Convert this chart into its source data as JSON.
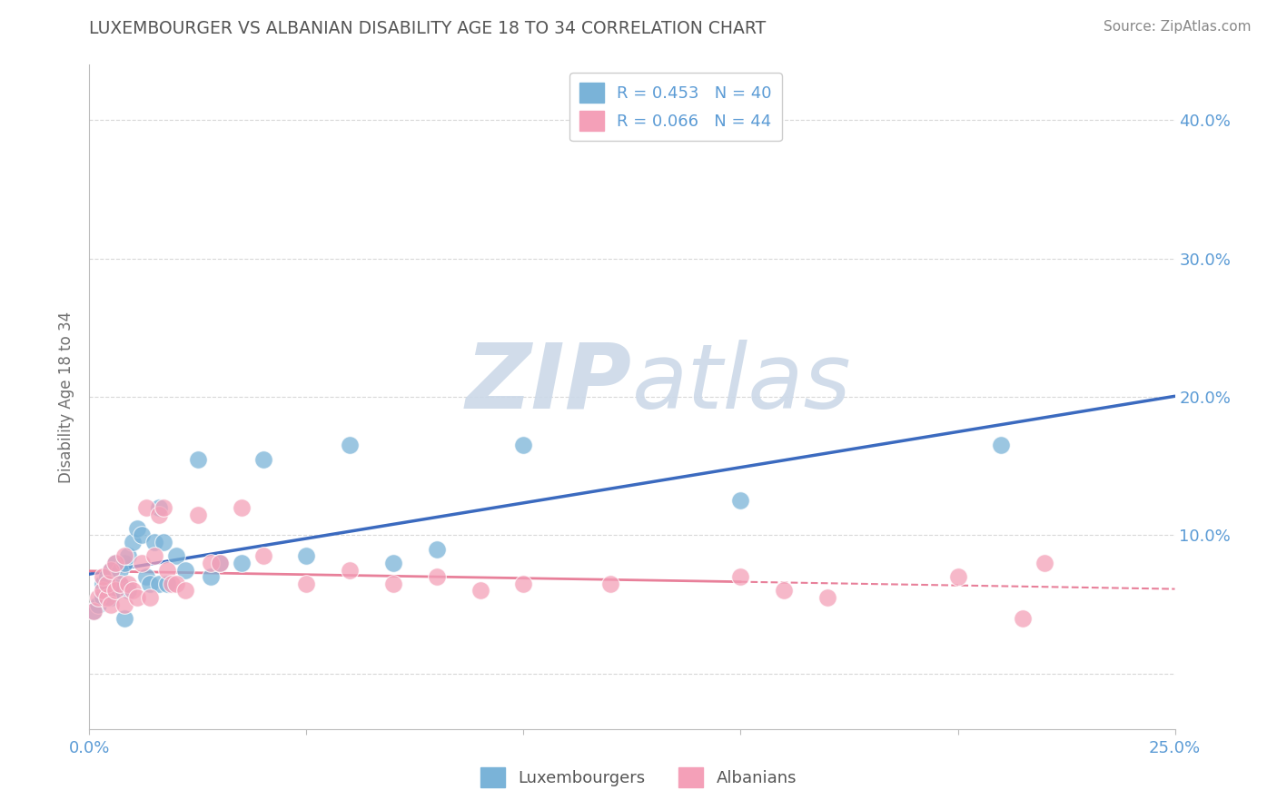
{
  "title": "LUXEMBOURGER VS ALBANIAN DISABILITY AGE 18 TO 34 CORRELATION CHART",
  "source": "Source: ZipAtlas.com",
  "ylabel": "Disability Age 18 to 34",
  "xlim": [
    0.0,
    0.25
  ],
  "ylim": [
    -0.04,
    0.44
  ],
  "ytick_vals": [
    0.0,
    0.1,
    0.2,
    0.3,
    0.4
  ],
  "ytick_labels": [
    "",
    "10.0%",
    "20.0%",
    "30.0%",
    "40.0%"
  ],
  "legend_lux": "R = 0.453   N = 40",
  "legend_alb": "R = 0.066   N = 44",
  "watermark": "ZIPatlas",
  "lux_color": "#7ab3d8",
  "alb_color": "#f4a0b8",
  "lux_line_color": "#3b6abf",
  "alb_line_color": "#e8809a",
  "background_color": "#ffffff",
  "grid_color": "#d8d8d8",
  "title_color": "#555555",
  "axis_label_color": "#5b9bd5",
  "watermark_color": "#ccd9e8",
  "lux_x": [
    0.001,
    0.002,
    0.003,
    0.003,
    0.004,
    0.004,
    0.005,
    0.005,
    0.006,
    0.006,
    0.007,
    0.007,
    0.008,
    0.008,
    0.009,
    0.009,
    0.01,
    0.011,
    0.012,
    0.013,
    0.014,
    0.015,
    0.016,
    0.016,
    0.017,
    0.018,
    0.02,
    0.022,
    0.025,
    0.028,
    0.03,
    0.035,
    0.04,
    0.05,
    0.06,
    0.07,
    0.08,
    0.1,
    0.15,
    0.21
  ],
  "lux_y": [
    0.045,
    0.05,
    0.055,
    0.065,
    0.06,
    0.07,
    0.055,
    0.075,
    0.06,
    0.08,
    0.065,
    0.075,
    0.04,
    0.08,
    0.06,
    0.085,
    0.095,
    0.105,
    0.1,
    0.07,
    0.065,
    0.095,
    0.12,
    0.065,
    0.095,
    0.065,
    0.085,
    0.075,
    0.155,
    0.07,
    0.08,
    0.08,
    0.155,
    0.085,
    0.165,
    0.08,
    0.09,
    0.165,
    0.125,
    0.165
  ],
  "alb_x": [
    0.001,
    0.002,
    0.003,
    0.003,
    0.004,
    0.004,
    0.005,
    0.005,
    0.006,
    0.006,
    0.007,
    0.008,
    0.008,
    0.009,
    0.01,
    0.011,
    0.012,
    0.013,
    0.014,
    0.015,
    0.016,
    0.017,
    0.018,
    0.019,
    0.02,
    0.022,
    0.025,
    0.028,
    0.03,
    0.035,
    0.04,
    0.05,
    0.06,
    0.07,
    0.08,
    0.09,
    0.1,
    0.12,
    0.15,
    0.16,
    0.17,
    0.2,
    0.215,
    0.22
  ],
  "alb_y": [
    0.045,
    0.055,
    0.06,
    0.07,
    0.055,
    0.065,
    0.05,
    0.075,
    0.06,
    0.08,
    0.065,
    0.05,
    0.085,
    0.065,
    0.06,
    0.055,
    0.08,
    0.12,
    0.055,
    0.085,
    0.115,
    0.12,
    0.075,
    0.065,
    0.065,
    0.06,
    0.115,
    0.08,
    0.08,
    0.12,
    0.085,
    0.065,
    0.075,
    0.065,
    0.07,
    0.06,
    0.065,
    0.065,
    0.07,
    0.06,
    0.055,
    0.07,
    0.04,
    0.08
  ]
}
